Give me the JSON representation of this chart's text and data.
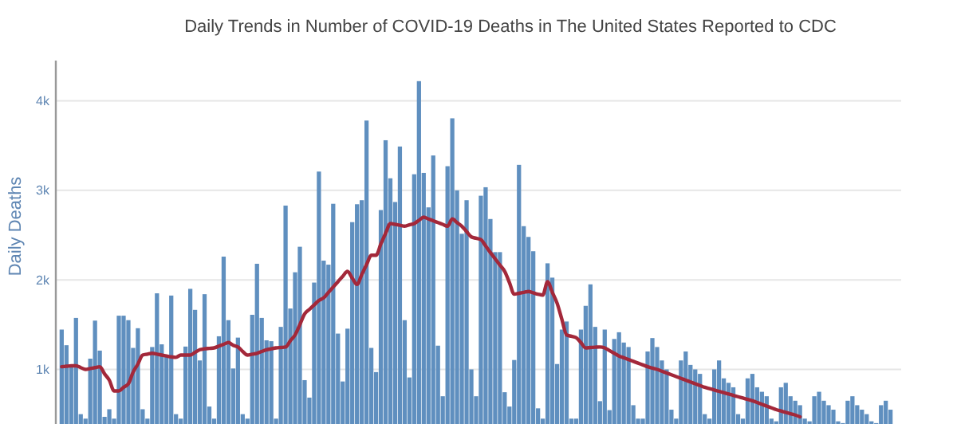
{
  "chart_data": {
    "type": "bar",
    "title": "Daily Trends in Number of COVID-19 Deaths in The United States Reported to CDC",
    "ylabel": "Daily Deaths",
    "categories": [
      null,
      null,
      null,
      null,
      null,
      null,
      null,
      null,
      null,
      null,
      null,
      null,
      null,
      null,
      null,
      null,
      null,
      null,
      null,
      null,
      null,
      null,
      null,
      null,
      null,
      null,
      null,
      null,
      null,
      null,
      null,
      null,
      null,
      null,
      null,
      null,
      null,
      null,
      null,
      null,
      null,
      null,
      null,
      null,
      null,
      null,
      null,
      null,
      null,
      null,
      null,
      null,
      null,
      null,
      null,
      null,
      null,
      null,
      null,
      null,
      null,
      null,
      null,
      null,
      null,
      null,
      null,
      null,
      null,
      null,
      null,
      null,
      null,
      null,
      null,
      null,
      null,
      null,
      null,
      null,
      null,
      null,
      null,
      null,
      null,
      null,
      null,
      null,
      null,
      null,
      null,
      null,
      null,
      null,
      null,
      null,
      null,
      null,
      null,
      null,
      null,
      null,
      null,
      null,
      null,
      null,
      null,
      null,
      null,
      null,
      null,
      null,
      null,
      null,
      null,
      null,
      null,
      null,
      null,
      null,
      null,
      null,
      null,
      null,
      null,
      null,
      null,
      null,
      null,
      null,
      null,
      null,
      null,
      null,
      null,
      null,
      null,
      null,
      null,
      null,
      null,
      null,
      null,
      null,
      null,
      null,
      null,
      null,
      null,
      null,
      null,
      null,
      null,
      null,
      null,
      null,
      null,
      null,
      null,
      null,
      null,
      null,
      null,
      null,
      null,
      null,
      null,
      null,
      null,
      null,
      null,
      null,
      null,
      null,
      null
    ],
    "series": [
      {
        "color": "#5f8fbf",
        "values": [
          1445,
          1270,
          1050,
          1575,
          500,
          450,
          1120,
          1545,
          1210,
          470,
          555,
          450,
          1600,
          1600,
          1550,
          1240,
          1460,
          555,
          450,
          1250,
          1850,
          1280,
          1165,
          1825,
          500,
          450,
          1255,
          1900,
          1665,
          1100,
          1840,
          585,
          450,
          1370,
          2260,
          1550,
          1010,
          1355,
          500,
          450,
          1610,
          2180,
          1575,
          1325,
          1315,
          450,
          1475,
          2830,
          1680,
          2085,
          2370,
          880,
          685,
          1970,
          3210,
          2215,
          2170,
          2850,
          1400,
          865,
          1455,
          2645,
          2845,
          2890,
          3780,
          1240,
          970,
          2780,
          3560,
          3135,
          2870,
          3490,
          1550,
          910,
          3180,
          4220,
          3195,
          2810,
          3390,
          1265,
          700,
          3270,
          3805,
          3000,
          2515,
          2890,
          1000,
          700,
          2940,
          3035,
          2680,
          2310,
          2310,
          745,
          585,
          1105,
          3285,
          2600,
          2480,
          2320,
          565,
          450,
          2185,
          2025,
          1060,
          1445,
          1535,
          450,
          450,
          1445,
          1710,
          1950,
          1475,
          645,
          1445,
          545,
          1340,
          1415,
          1300,
          1250,
          600,
          450,
          450,
          1200,
          1350,
          1250,
          1100,
          1000,
          550,
          450,
          1100,
          1200,
          1050,
          1000,
          950,
          500,
          450,
          1000,
          1100,
          900,
          850,
          800,
          500,
          450,
          900,
          950,
          800,
          750,
          700,
          450,
          420,
          800,
          850,
          700,
          650,
          600,
          450,
          420,
          700,
          750,
          650,
          600,
          550,
          420,
          400,
          650,
          700,
          600,
          550,
          500,
          420,
          400,
          600,
          650,
          550
        ]
      },
      {
        "type": "line",
        "color": "#a3283a",
        "values": [
          1030,
          1035,
          1040,
          1040,
          1020,
          1000,
          1010,
          1020,
          1030,
          950,
          880,
          760,
          760,
          800,
          840,
          970,
          1060,
          1160,
          1170,
          1180,
          1170,
          1160,
          1150,
          1140,
          1135,
          1160,
          1160,
          1160,
          1190,
          1220,
          1230,
          1235,
          1240,
          1260,
          1280,
          1300,
          1270,
          1250,
          1200,
          1160,
          1170,
          1180,
          1200,
          1220,
          1230,
          1240,
          1245,
          1250,
          1320,
          1385,
          1500,
          1620,
          1670,
          1720,
          1770,
          1800,
          1860,
          1920,
          1980,
          2040,
          2095,
          2020,
          1950,
          2060,
          2170,
          2275,
          2275,
          2400,
          2520,
          2630,
          2620,
          2610,
          2600,
          2615,
          2630,
          2665,
          2700,
          2680,
          2660,
          2640,
          2620,
          2600,
          2680,
          2640,
          2600,
          2540,
          2480,
          2465,
          2450,
          2380,
          2305,
          2235,
          2165,
          2095,
          1970,
          1840,
          1850,
          1860,
          1870,
          1855,
          1840,
          1830,
          1980,
          1860,
          1740,
          1560,
          1385,
          1370,
          1355,
          1300,
          1240,
          1245,
          1248,
          1250,
          1240,
          1210,
          1180,
          1150,
          1130,
          1110,
          1090,
          1070,
          1050,
          1030,
          1015,
          1000,
          980,
          960,
          940,
          920,
          900,
          880,
          860,
          840,
          820,
          800,
          785,
          770,
          755,
          740,
          725,
          710,
          695,
          680,
          665,
          650,
          630,
          610,
          590,
          570,
          550,
          535,
          520,
          505,
          490,
          470,
          null,
          null,
          null,
          null,
          null,
          null,
          null,
          null,
          null,
          null,
          null,
          null,
          null,
          null,
          null,
          null,
          null,
          null,
          null
        ]
      }
    ],
    "ylim": [
      390,
      4450
    ],
    "yticks": [
      {
        "value": 1000,
        "label": "1k"
      },
      {
        "value": 2000,
        "label": "2k"
      },
      {
        "value": 3000,
        "label": "3k"
      },
      {
        "value": 4000,
        "label": "4k"
      }
    ],
    "grid": "y"
  }
}
